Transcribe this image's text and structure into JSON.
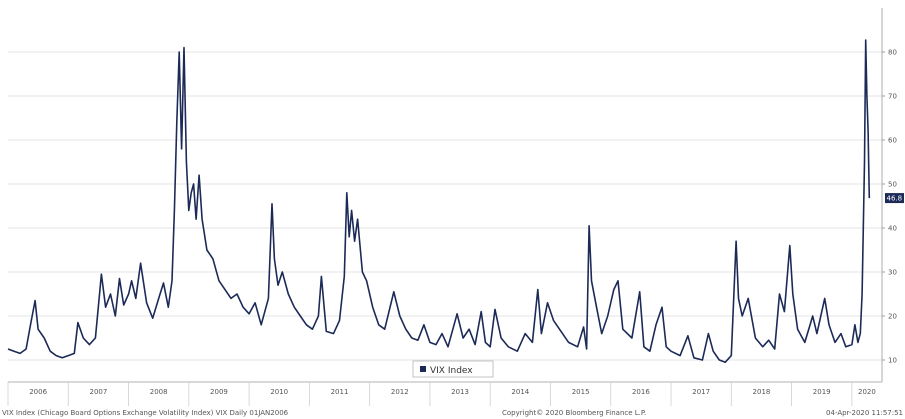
{
  "chart_data": {
    "type": "line",
    "title": "",
    "xlabel": "",
    "ylabel": "",
    "ylim": [
      5,
      90
    ],
    "yticks": [
      10,
      20,
      30,
      40,
      50,
      60,
      70,
      80
    ],
    "ytick_labels": [
      "10",
      "20",
      "30",
      "40",
      "50",
      "60",
      "70",
      "80"
    ],
    "xlim": [
      2006.0,
      2020.5
    ],
    "xtick_labels": [
      "2006",
      "2007",
      "2008",
      "2009",
      "2010",
      "2011",
      "2012",
      "2013",
      "2014",
      "2015",
      "2016",
      "2017",
      "2018",
      "2019",
      "2020"
    ],
    "grid": true,
    "legend": {
      "position": "bottom-center",
      "entries": [
        "VIX Index"
      ]
    },
    "last_value_label": "46.8",
    "series": [
      {
        "name": "VIX Index",
        "color": "#1c2a57",
        "points": [
          [
            2006.0,
            12.5
          ],
          [
            2006.1,
            12.0
          ],
          [
            2006.2,
            11.5
          ],
          [
            2006.3,
            12.5
          ],
          [
            2006.38,
            18.5
          ],
          [
            2006.45,
            23.5
          ],
          [
            2006.5,
            17.0
          ],
          [
            2006.6,
            15.0
          ],
          [
            2006.7,
            12.0
          ],
          [
            2006.8,
            11.0
          ],
          [
            2006.9,
            10.5
          ],
          [
            2007.0,
            11.0
          ],
          [
            2007.1,
            11.5
          ],
          [
            2007.16,
            18.5
          ],
          [
            2007.25,
            15.0
          ],
          [
            2007.35,
            13.5
          ],
          [
            2007.45,
            15.0
          ],
          [
            2007.55,
            29.5
          ],
          [
            2007.62,
            22.0
          ],
          [
            2007.7,
            25.0
          ],
          [
            2007.78,
            20.0
          ],
          [
            2007.85,
            28.5
          ],
          [
            2007.92,
            22.5
          ],
          [
            2008.0,
            25.0
          ],
          [
            2008.05,
            28.0
          ],
          [
            2008.12,
            24.0
          ],
          [
            2008.2,
            32.0
          ],
          [
            2008.3,
            23.0
          ],
          [
            2008.4,
            19.5
          ],
          [
            2008.5,
            24.0
          ],
          [
            2008.58,
            27.5
          ],
          [
            2008.66,
            22.0
          ],
          [
            2008.72,
            28.0
          ],
          [
            2008.76,
            44.0
          ],
          [
            2008.8,
            64.0
          ],
          [
            2008.84,
            80.0
          ],
          [
            2008.88,
            58.0
          ],
          [
            2008.92,
            81.0
          ],
          [
            2008.96,
            55.0
          ],
          [
            2009.0,
            44.0
          ],
          [
            2009.04,
            48.0
          ],
          [
            2009.08,
            50.0
          ],
          [
            2009.12,
            42.0
          ],
          [
            2009.17,
            52.0
          ],
          [
            2009.22,
            42.0
          ],
          [
            2009.3,
            35.0
          ],
          [
            2009.4,
            33.0
          ],
          [
            2009.5,
            28.0
          ],
          [
            2009.6,
            26.0
          ],
          [
            2009.7,
            24.0
          ],
          [
            2009.8,
            25.0
          ],
          [
            2009.9,
            22.0
          ],
          [
            2010.0,
            20.5
          ],
          [
            2010.1,
            23.0
          ],
          [
            2010.2,
            18.0
          ],
          [
            2010.32,
            24.0
          ],
          [
            2010.38,
            45.5
          ],
          [
            2010.42,
            33.0
          ],
          [
            2010.48,
            27.0
          ],
          [
            2010.55,
            30.0
          ],
          [
            2010.65,
            25.0
          ],
          [
            2010.75,
            22.0
          ],
          [
            2010.85,
            20.0
          ],
          [
            2010.95,
            18.0
          ],
          [
            2011.05,
            17.0
          ],
          [
            2011.15,
            20.0
          ],
          [
            2011.2,
            29.0
          ],
          [
            2011.28,
            16.5
          ],
          [
            2011.4,
            16.0
          ],
          [
            2011.5,
            19.0
          ],
          [
            2011.58,
            29.0
          ],
          [
            2011.62,
            48.0
          ],
          [
            2011.66,
            38.0
          ],
          [
            2011.7,
            44.0
          ],
          [
            2011.75,
            37.0
          ],
          [
            2011.8,
            42.0
          ],
          [
            2011.88,
            30.0
          ],
          [
            2011.95,
            28.0
          ],
          [
            2012.05,
            22.0
          ],
          [
            2012.15,
            18.0
          ],
          [
            2012.25,
            17.0
          ],
          [
            2012.4,
            25.5
          ],
          [
            2012.5,
            20.0
          ],
          [
            2012.6,
            17.0
          ],
          [
            2012.7,
            15.0
          ],
          [
            2012.8,
            14.5
          ],
          [
            2012.9,
            18.0
          ],
          [
            2013.0,
            14.0
          ],
          [
            2013.1,
            13.5
          ],
          [
            2013.2,
            16.0
          ],
          [
            2013.3,
            13.0
          ],
          [
            2013.45,
            20.5
          ],
          [
            2013.55,
            15.0
          ],
          [
            2013.65,
            17.0
          ],
          [
            2013.75,
            13.5
          ],
          [
            2013.85,
            21.0
          ],
          [
            2013.92,
            14.0
          ],
          [
            2014.0,
            13.0
          ],
          [
            2014.08,
            21.5
          ],
          [
            2014.18,
            15.0
          ],
          [
            2014.3,
            13.0
          ],
          [
            2014.45,
            12.0
          ],
          [
            2014.58,
            16.0
          ],
          [
            2014.7,
            14.0
          ],
          [
            2014.79,
            26.0
          ],
          [
            2014.85,
            16.0
          ],
          [
            2014.95,
            23.0
          ],
          [
            2015.05,
            19.0
          ],
          [
            2015.15,
            17.0
          ],
          [
            2015.3,
            14.0
          ],
          [
            2015.45,
            13.0
          ],
          [
            2015.55,
            17.5
          ],
          [
            2015.6,
            12.5
          ],
          [
            2015.64,
            40.5
          ],
          [
            2015.68,
            28.0
          ],
          [
            2015.75,
            23.0
          ],
          [
            2015.85,
            16.0
          ],
          [
            2015.95,
            20.0
          ],
          [
            2016.05,
            26.0
          ],
          [
            2016.12,
            28.0
          ],
          [
            2016.2,
            17.0
          ],
          [
            2016.35,
            15.0
          ],
          [
            2016.48,
            25.5
          ],
          [
            2016.55,
            13.0
          ],
          [
            2016.65,
            12.0
          ],
          [
            2016.75,
            18.0
          ],
          [
            2016.85,
            22.0
          ],
          [
            2016.92,
            13.0
          ],
          [
            2017.0,
            12.0
          ],
          [
            2017.15,
            11.0
          ],
          [
            2017.28,
            15.5
          ],
          [
            2017.38,
            10.5
          ],
          [
            2017.52,
            10.0
          ],
          [
            2017.62,
            16.0
          ],
          [
            2017.7,
            12.0
          ],
          [
            2017.8,
            10.0
          ],
          [
            2017.9,
            9.5
          ],
          [
            2018.0,
            11.0
          ],
          [
            2018.08,
            37.0
          ],
          [
            2018.12,
            24.0
          ],
          [
            2018.18,
            20.0
          ],
          [
            2018.28,
            24.0
          ],
          [
            2018.4,
            15.0
          ],
          [
            2018.52,
            13.0
          ],
          [
            2018.62,
            14.5
          ],
          [
            2018.72,
            12.5
          ],
          [
            2018.8,
            25.0
          ],
          [
            2018.88,
            21.0
          ],
          [
            2018.97,
            36.0
          ],
          [
            2019.02,
            25.0
          ],
          [
            2019.1,
            17.0
          ],
          [
            2019.22,
            14.0
          ],
          [
            2019.35,
            20.0
          ],
          [
            2019.42,
            16.0
          ],
          [
            2019.55,
            24.0
          ],
          [
            2019.62,
            18.0
          ],
          [
            2019.72,
            14.0
          ],
          [
            2019.82,
            16.0
          ],
          [
            2019.9,
            13.0
          ],
          [
            2020.0,
            13.5
          ],
          [
            2020.05,
            18.0
          ],
          [
            2020.1,
            14.0
          ],
          [
            2020.14,
            16.0
          ],
          [
            2020.17,
            25.0
          ],
          [
            2020.19,
            40.0
          ],
          [
            2020.21,
            55.0
          ],
          [
            2020.23,
            82.7
          ],
          [
            2020.25,
            70.0
          ],
          [
            2020.27,
            62.0
          ],
          [
            2020.29,
            46.8
          ]
        ]
      }
    ]
  },
  "footer": {
    "left": "VIX Index (Chicago Board Options Exchange Volatility Index) VIX  Daily 01JAN2006",
    "center": "Copyright© 2020 Bloomberg Finance L.P.",
    "right": "04-Apr-2020 11:57:51"
  }
}
